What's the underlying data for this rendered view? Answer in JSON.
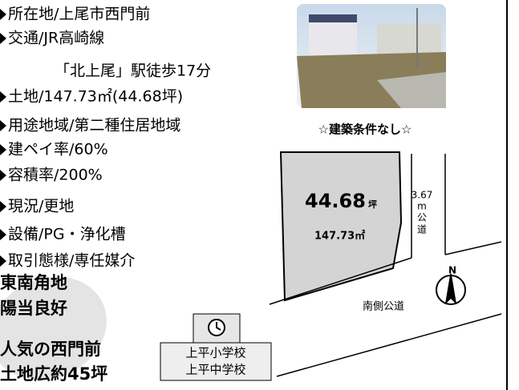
{
  "features": [
    "所在地/上尾市西門前",
    "交通/JR高崎線",
    "「北上尾」駅徒歩17分",
    "土地/147.73㎡(44.68坪)",
    "用途地域/第二種住居地域",
    "建ペイ率/60%",
    "容積率/200%",
    "現況/更地",
    "設備/PG・浄化槽",
    "取引態様/専任媒介"
  ],
  "tagline": "☆建築条件なし☆",
  "plot": {
    "area_tsubo": "44.68",
    "tsubo_unit": "坪",
    "area_sqm": "147.73㎡"
  },
  "east_road": {
    "width": "3.67",
    "unit": "m",
    "label_1": "公",
    "label_2": "道"
  },
  "south_road": "南側公道",
  "compass": "N",
  "schools": [
    "上平小学校",
    "上平中学校"
  ],
  "highlights": [
    "東南角地",
    "陽当良好",
    "人気の西門前",
    "土地広約45坪"
  ]
}
